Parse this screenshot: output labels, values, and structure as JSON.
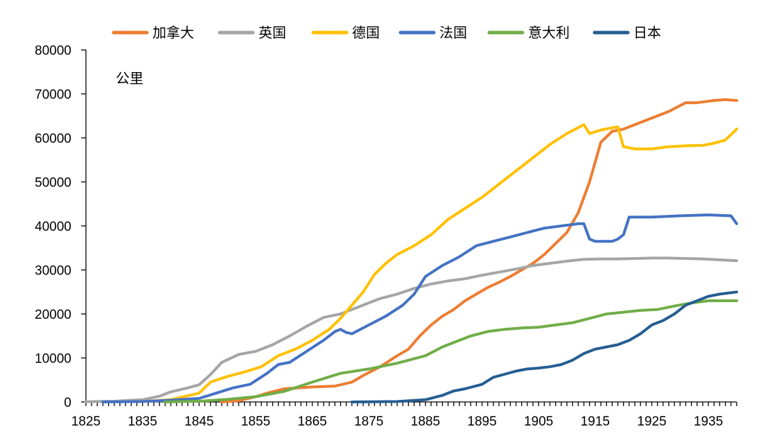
{
  "chart_data": {
    "type": "line",
    "title": "",
    "ylabel": "公里",
    "xlabel": "",
    "xlim": [
      1825,
      1940
    ],
    "ylim": [
      0,
      80000
    ],
    "legend_position": "top",
    "x_tick_labels": [
      "1825",
      "1835",
      "1845",
      "1855",
      "1865",
      "1875",
      "1885",
      "1895",
      "1905",
      "1915",
      "1925",
      "1935"
    ],
    "x_ticks": [
      1825,
      1835,
      1845,
      1855,
      1865,
      1875,
      1885,
      1895,
      1905,
      1915,
      1925,
      1935
    ],
    "y_tick_labels": [
      "0",
      "10000",
      "20000",
      "30000",
      "40000",
      "50000",
      "60000",
      "70000",
      "80000"
    ],
    "y_ticks": [
      0,
      10000,
      20000,
      30000,
      40000,
      50000,
      60000,
      70000,
      80000
    ],
    "series": [
      {
        "name": "加拿大",
        "color": "#ED7D31",
        "x": [
          1849,
          1852,
          1855,
          1857,
          1860,
          1865,
          1869,
          1872,
          1874,
          1877,
          1880,
          1882,
          1884,
          1886,
          1888,
          1890,
          1892,
          1894,
          1896,
          1898,
          1900,
          1902,
          1904,
          1906,
          1908,
          1910,
          1912,
          1914,
          1916,
          1918,
          1920,
          1922,
          1925,
          1928,
          1931,
          1933,
          1936,
          1938,
          1940
        ],
        "values": [
          0,
          300,
          1200,
          2000,
          3000,
          3400,
          3600,
          4500,
          6000,
          8000,
          10500,
          12000,
          15000,
          17500,
          19500,
          21000,
          23000,
          24500,
          26000,
          27200,
          28500,
          30000,
          31500,
          33500,
          36000,
          38500,
          43000,
          50000,
          59000,
          61500,
          62000,
          63000,
          64500,
          66000,
          68000,
          68000,
          68500,
          68700,
          68500
        ]
      },
      {
        "name": "英国",
        "color": "#A5A5A5",
        "x": [
          1825,
          1830,
          1835,
          1838,
          1840,
          1843,
          1845,
          1847,
          1849,
          1852,
          1855,
          1858,
          1861,
          1864,
          1867,
          1870,
          1874,
          1877,
          1880,
          1883,
          1886,
          1889,
          1892,
          1895,
          1898,
          1901,
          1904,
          1907,
          1910,
          1913,
          1916,
          1919,
          1922,
          1925,
          1928,
          1931,
          1934,
          1937,
          1940
        ],
        "values": [
          50,
          150,
          500,
          1300,
          2300,
          3200,
          3900,
          6200,
          9000,
          10800,
          11500,
          13000,
          15000,
          17200,
          19200,
          20000,
          22000,
          23500,
          24500,
          25800,
          26800,
          27500,
          28000,
          28800,
          29500,
          30200,
          31000,
          31500,
          32000,
          32400,
          32500,
          32500,
          32600,
          32700,
          32700,
          32600,
          32500,
          32300,
          32100
        ]
      },
      {
        "name": "德国",
        "color": "#FFC000",
        "x": [
          1835,
          1840,
          1845,
          1847,
          1850,
          1853,
          1856,
          1859,
          1862,
          1865,
          1868,
          1870,
          1872,
          1874,
          1876,
          1878,
          1880,
          1883,
          1886,
          1889,
          1892,
          1895,
          1898,
          1901,
          1904,
          1907,
          1910,
          1913,
          1914,
          1916,
          1918,
          1919,
          1920,
          1922,
          1925,
          1928,
          1931,
          1934,
          1936,
          1938,
          1940
        ],
        "values": [
          100,
          500,
          2000,
          4500,
          5800,
          6800,
          8000,
          10500,
          12000,
          14000,
          16500,
          19000,
          22000,
          25000,
          29000,
          31500,
          33500,
          35500,
          38000,
          41500,
          44000,
          46500,
          49500,
          52500,
          55500,
          58500,
          61000,
          63000,
          61000,
          61800,
          62300,
          62500,
          58000,
          57500,
          57500,
          58000,
          58200,
          58300,
          58800,
          59500,
          62000
        ]
      },
      {
        "name": "法国",
        "color": "#4472C4",
        "x": [
          1828,
          1835,
          1840,
          1845,
          1848,
          1851,
          1854,
          1857,
          1859,
          1861,
          1864,
          1867,
          1869,
          1870,
          1871,
          1872,
          1875,
          1878,
          1881,
          1883,
          1885,
          1888,
          1891,
          1894,
          1897,
          1900,
          1903,
          1906,
          1909,
          1912,
          1913,
          1914,
          1915,
          1916,
          1918,
          1919,
          1920,
          1921,
          1925,
          1930,
          1935,
          1939,
          1940
        ],
        "values": [
          0,
          100,
          400,
          800,
          2000,
          3200,
          4000,
          6500,
          8500,
          9000,
          11500,
          14000,
          16000,
          16500,
          15800,
          15500,
          17500,
          19500,
          22000,
          24500,
          28500,
          31000,
          33000,
          35500,
          36500,
          37500,
          38500,
          39500,
          40000,
          40500,
          40500,
          37000,
          36500,
          36500,
          36500,
          37000,
          38000,
          42000,
          42000,
          42300,
          42500,
          42300,
          40500
        ]
      },
      {
        "name": "意大利",
        "color": "#70AD47",
        "x": [
          1839,
          1845,
          1850,
          1855,
          1860,
          1865,
          1870,
          1875,
          1880,
          1885,
          1888,
          1890,
          1893,
          1896,
          1899,
          1902,
          1905,
          1908,
          1911,
          1914,
          1917,
          1920,
          1923,
          1926,
          1929,
          1932,
          1935,
          1938,
          1940
        ],
        "values": [
          0,
          150,
          600,
          1200,
          2400,
          4500,
          6500,
          7500,
          8800,
          10500,
          12500,
          13500,
          15000,
          16000,
          16500,
          16800,
          17000,
          17500,
          18000,
          19000,
          20000,
          20400,
          20800,
          21000,
          21800,
          22500,
          23000,
          23000,
          23000
        ]
      },
      {
        "name": "日本",
        "color": "#255E91",
        "x": [
          1872,
          1880,
          1885,
          1888,
          1890,
          1892,
          1895,
          1897,
          1899,
          1901,
          1903,
          1905,
          1907,
          1909,
          1911,
          1913,
          1915,
          1917,
          1919,
          1921,
          1923,
          1925,
          1927,
          1929,
          1931,
          1933,
          1935,
          1937,
          1940
        ],
        "values": [
          0,
          100,
          500,
          1500,
          2500,
          3000,
          4000,
          5600,
          6300,
          7000,
          7500,
          7700,
          8000,
          8500,
          9500,
          11000,
          12000,
          12500,
          13000,
          14000,
          15500,
          17500,
          18500,
          20000,
          22000,
          23000,
          24000,
          24500,
          25000
        ]
      }
    ]
  }
}
